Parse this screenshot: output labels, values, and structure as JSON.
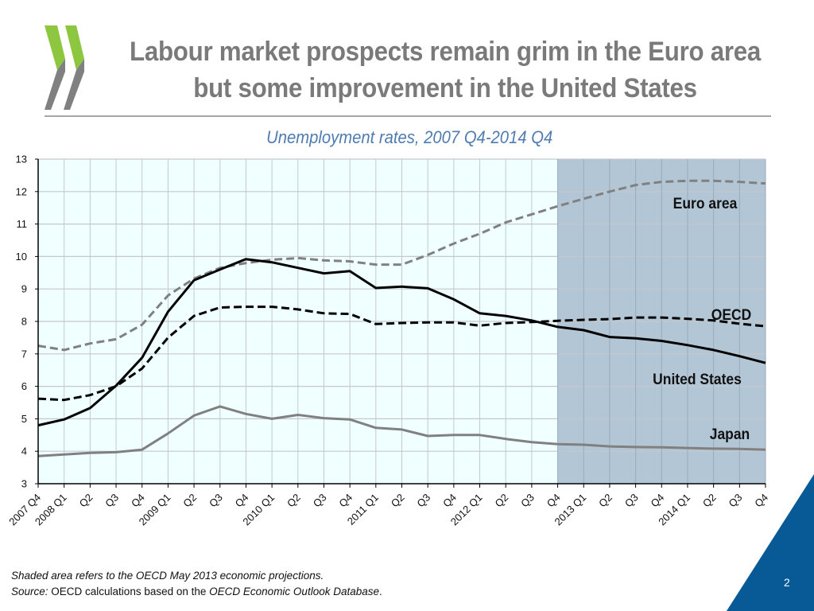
{
  "header": {
    "title_line1": "Labour market prospects remain grim in the Euro area",
    "title_line2": "but some improvement in the United States",
    "logo_icon": "oecd-double-chevron-logo",
    "colors": {
      "logo_green": "#8dc63f",
      "logo_grey": "#808080",
      "title": "#7a7a7a",
      "subtitle": "#4f7bb0",
      "corner": "#075a95"
    }
  },
  "footer": {
    "note_line1": "Shaded area refers to the OECD May 2013 economic projections.",
    "source_label": "Source:",
    "source_text": " OECD calculations based on the ",
    "source_db": "OECD Economic Outlook Database",
    "source_end": ".",
    "page_number": "2"
  },
  "chart_data": {
    "type": "line",
    "title": "Unemployment rates, 2007 Q4-2014 Q4",
    "xlabel": "",
    "ylabel": "",
    "ylim": [
      3,
      13
    ],
    "yticks": [
      3,
      4,
      5,
      6,
      7,
      8,
      9,
      10,
      11,
      12,
      13
    ],
    "grid": true,
    "categories": [
      "2007 Q4",
      "2008 Q1",
      "Q2",
      "Q3",
      "Q4",
      "2009 Q1",
      "Q2",
      "Q3",
      "Q4",
      "2010 Q1",
      "Q2",
      "Q3",
      "Q4",
      "2011 Q1",
      "Q2",
      "Q3",
      "Q4",
      "2012 Q1",
      "Q2",
      "Q3",
      "Q4",
      "2013 Q1",
      "Q2",
      "Q3",
      "Q4",
      "2014 Q1",
      "Q2",
      "Q3",
      "Q4"
    ],
    "shaded_region": {
      "from": "2013 Q2",
      "to": "2014 Q4",
      "label": "OECD May 2013 economic projections",
      "color": "#b3c6d6"
    },
    "plot_background": "#f0ffff",
    "series": [
      {
        "name": "Euro area",
        "style": "dashed",
        "color": "#808080",
        "values": [
          7.25,
          7.12,
          7.32,
          7.45,
          7.9,
          8.8,
          9.32,
          9.65,
          9.8,
          9.9,
          9.95,
          9.88,
          9.85,
          9.75,
          9.75,
          10.05,
          10.4,
          10.7,
          11.05,
          11.3,
          11.55,
          11.78,
          12.0,
          12.2,
          12.3,
          12.33,
          12.33,
          12.3,
          12.25
        ]
      },
      {
        "name": "United States",
        "style": "solid",
        "color": "#000000",
        "values": [
          4.8,
          4.98,
          5.33,
          6.02,
          6.88,
          8.3,
          9.27,
          9.6,
          9.92,
          9.82,
          9.65,
          9.48,
          9.55,
          9.03,
          9.07,
          9.02,
          8.68,
          8.25,
          8.17,
          8.03,
          7.83,
          7.73,
          7.52,
          7.48,
          7.4,
          7.27,
          7.12,
          6.93,
          6.72
        ]
      },
      {
        "name": "OECD",
        "style": "dashed",
        "color": "#000000",
        "values": [
          5.62,
          5.58,
          5.73,
          6.0,
          6.55,
          7.5,
          8.17,
          8.43,
          8.45,
          8.45,
          8.37,
          8.25,
          8.23,
          7.92,
          7.95,
          7.97,
          7.97,
          7.87,
          7.95,
          7.98,
          8.02,
          8.05,
          8.07,
          8.12,
          8.12,
          8.08,
          8.03,
          7.93,
          7.85
        ]
      },
      {
        "name": "Japan",
        "style": "solid",
        "color": "#808080",
        "values": [
          3.85,
          3.9,
          3.95,
          3.97,
          4.05,
          4.55,
          5.1,
          5.38,
          5.15,
          5.0,
          5.12,
          5.02,
          4.98,
          4.72,
          4.67,
          4.47,
          4.5,
          4.5,
          4.38,
          4.28,
          4.22,
          4.2,
          4.15,
          4.13,
          4.12,
          4.1,
          4.08,
          4.07,
          4.05
        ]
      }
    ],
    "annotations": [
      {
        "text": "Euro area",
        "series": "Euro area",
        "x": "2014 Q1",
        "y": 11.6
      },
      {
        "text": "OECD",
        "series": "OECD",
        "x": "2014 Q2",
        "y": 8.2
      },
      {
        "text": "United States",
        "series": "United States",
        "x": "2014 Q1",
        "y": 6.2
      },
      {
        "text": "Japan",
        "series": "Japan",
        "x": "2014 Q2",
        "y": 4.5
      }
    ]
  }
}
